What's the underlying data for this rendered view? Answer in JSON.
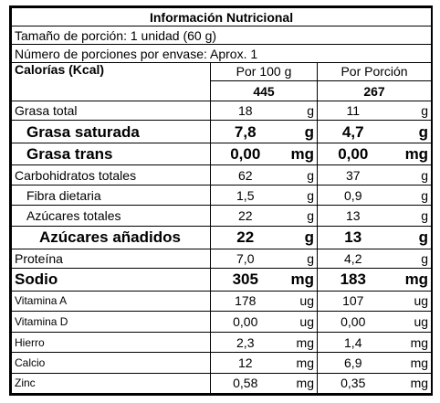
{
  "title": "Información Nutricional",
  "serving_size": "Tamaño de porción: 1 unidad (60 g)",
  "servings_per_package": "Número de porciones por envase: Aprox. 1",
  "calories_label": "Calorías (Kcal)",
  "col_100g": "Por 100 g",
  "col_portion": "Por Porción",
  "calories_100g": "445",
  "calories_portion": "267",
  "rows": [
    {
      "label": "Grasa total",
      "v100": "18",
      "u100": "g",
      "vp": "11",
      "up": "g"
    },
    {
      "label": "Grasa saturada",
      "v100": "7,8",
      "u100": "g",
      "vp": "4,7",
      "up": "g"
    },
    {
      "label": "Grasa trans",
      "v100": "0,00",
      "u100": "mg",
      "vp": "0,00",
      "up": "mg"
    },
    {
      "label": "Carbohidratos totales",
      "v100": "62",
      "u100": "g",
      "vp": "37",
      "up": "g"
    },
    {
      "label": "Fibra dietaria",
      "v100": "1,5",
      "u100": "g",
      "vp": "0,9",
      "up": "g"
    },
    {
      "label": "Azúcares totales",
      "v100": "22",
      "u100": "g",
      "vp": "13",
      "up": "g"
    },
    {
      "label": "Azúcares añadidos",
      "v100": "22",
      "u100": "g",
      "vp": "13",
      "up": "g"
    },
    {
      "label": "Proteína",
      "v100": "7,0",
      "u100": "g",
      "vp": "4,2",
      "up": "g"
    },
    {
      "label": "Sodio",
      "v100": "305",
      "u100": "mg",
      "vp": "183",
      "up": "mg"
    },
    {
      "label": "Vitamina A",
      "v100": "178",
      "u100": "ug",
      "vp": "107",
      "up": "ug"
    },
    {
      "label": "Vitamina D",
      "v100": "0,00",
      "u100": "ug",
      "vp": "0,00",
      "up": "ug"
    },
    {
      "label": "Hierro",
      "v100": "2,3",
      "u100": "mg",
      "vp": "1,4",
      "up": "mg"
    },
    {
      "label": "Calcio",
      "v100": "12",
      "u100": "mg",
      "vp": "6,9",
      "up": "mg"
    },
    {
      "label": "Zinc",
      "v100": "0,58",
      "u100": "mg",
      "vp": "0,35",
      "up": "mg"
    }
  ]
}
